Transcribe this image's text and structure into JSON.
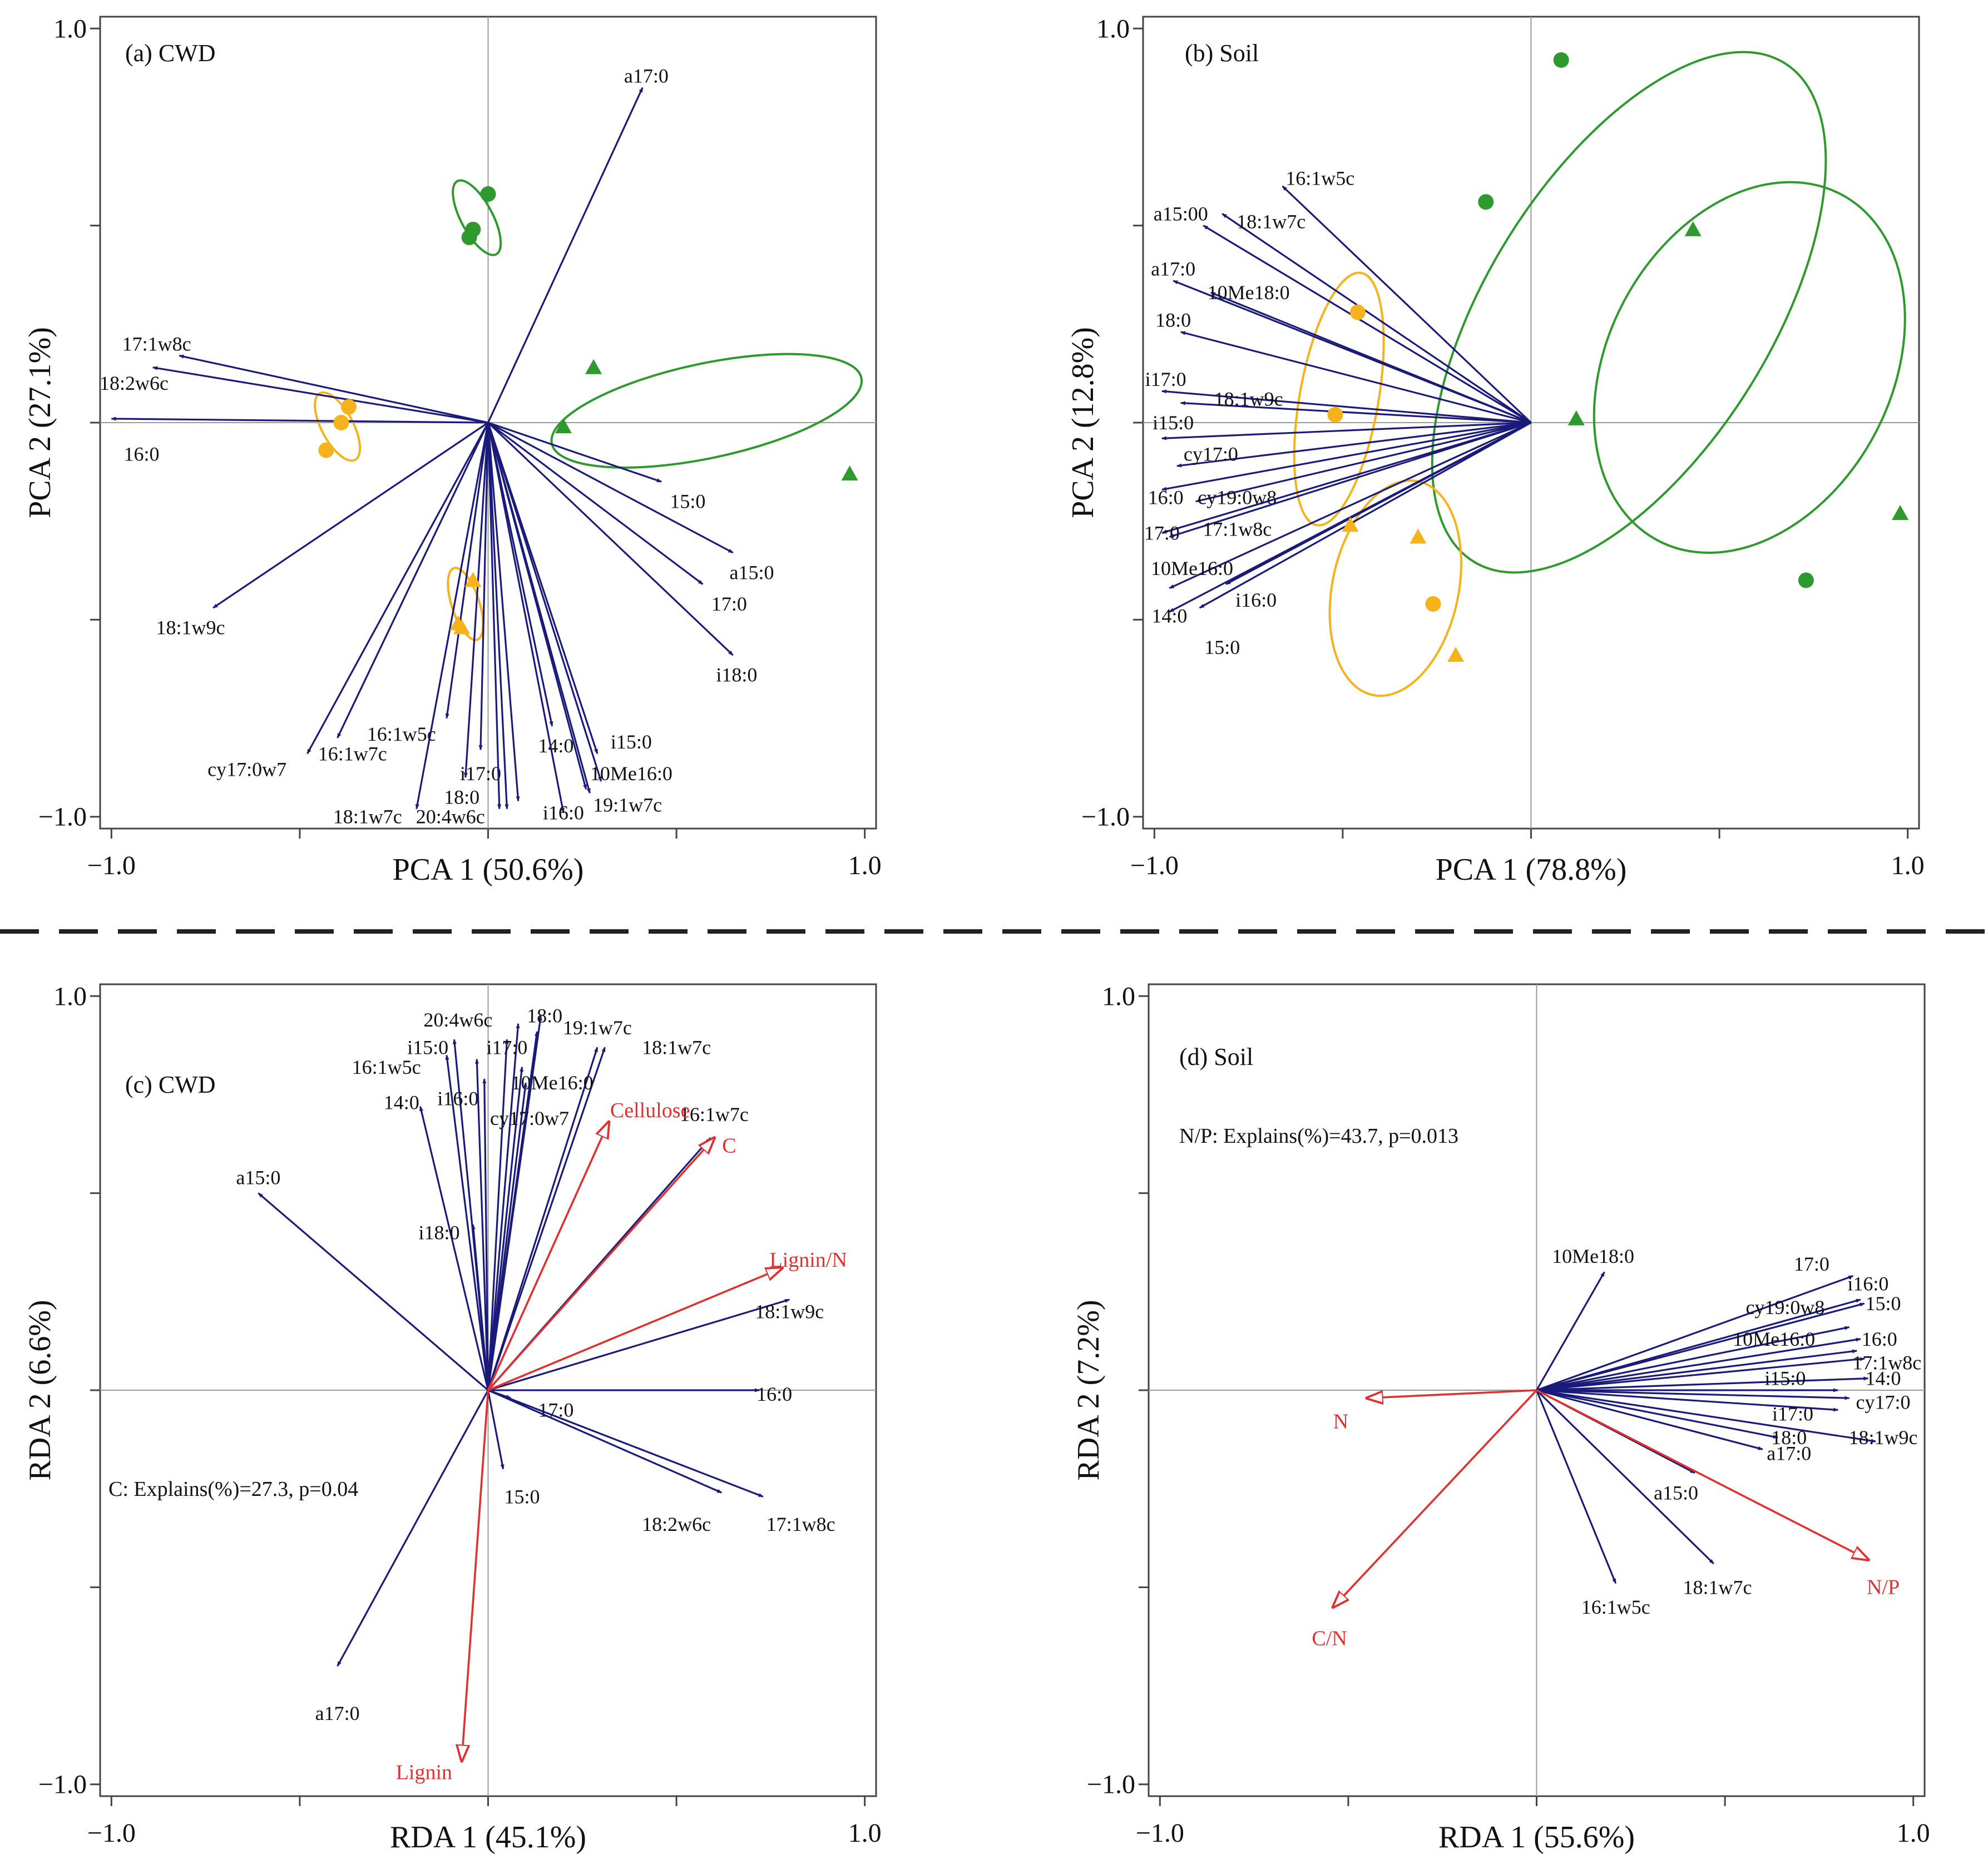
{
  "colors": {
    "species": "#1a1a7a",
    "env": "#e03030",
    "green": "#2e9a2e",
    "orange": "#f5b21a",
    "axes": "#444444",
    "crosshair": "#9a9a9a",
    "text": "#111111"
  },
  "chart_data": [
    {
      "id": "a",
      "type": "scatter",
      "subtype": "pca-biplot",
      "panel_label": "(a) CWD",
      "xlabel": "PCA 1 (50.6%)",
      "ylabel": "PCA 2 (27.1%)",
      "xlim": [
        -1.03,
        1.03
      ],
      "ylim": [
        -1.03,
        1.03
      ],
      "x_ticks": [
        -1.0,
        1.0
      ],
      "x_tick_labels": [
        "−1.0",
        "1.0"
      ],
      "y_ticks": [
        -1.0,
        1.0
      ],
      "y_tick_labels": [
        "−1.0",
        "1.0"
      ],
      "species_vectors": [
        {
          "label": "a17:0",
          "x": 0.41,
          "y": 0.85,
          "lx": 0.42,
          "ly": 0.88
        },
        {
          "label": "17:1w8c",
          "x": -0.82,
          "y": 0.17,
          "lx": -0.88,
          "ly": 0.2
        },
        {
          "label": "18:2w6c",
          "x": -0.89,
          "y": 0.14,
          "lx": -0.94,
          "ly": 0.1
        },
        {
          "label": "16:0",
          "x": -1.0,
          "y": 0.01,
          "lx": -0.92,
          "ly": -0.08
        },
        {
          "label": "15:0",
          "x": 0.46,
          "y": -0.15,
          "lx": 0.53,
          "ly": -0.2
        },
        {
          "label": "a15:0",
          "x": 0.65,
          "y": -0.33,
          "lx": 0.7,
          "ly": -0.38
        },
        {
          "label": "17:0",
          "x": 0.57,
          "y": -0.41,
          "lx": 0.64,
          "ly": -0.46
        },
        {
          "label": "i18:0",
          "x": 0.65,
          "y": -0.59,
          "lx": 0.66,
          "ly": -0.64
        },
        {
          "label": "18:1w9c",
          "x": -0.73,
          "y": -0.47,
          "lx": -0.79,
          "ly": -0.52
        },
        {
          "label": "cy17:0w7",
          "x": -0.48,
          "y": -0.84,
          "lx": -0.64,
          "ly": -0.88
        },
        {
          "label": "16:1w7c",
          "x": -0.4,
          "y": -0.8,
          "lx": -0.36,
          "ly": -0.84
        },
        {
          "label": "16:1w5c",
          "x": -0.11,
          "y": -0.75,
          "lx": -0.23,
          "ly": -0.79
        },
        {
          "label": "i17:0",
          "x": -0.02,
          "y": -0.83,
          "lx": -0.02,
          "ly": -0.89
        },
        {
          "label": "14:0",
          "x": 0.17,
          "y": -0.77,
          "lx": 0.18,
          "ly": -0.82
        },
        {
          "label": "i15:0",
          "x": 0.29,
          "y": -0.84,
          "lx": 0.38,
          "ly": -0.81
        },
        {
          "label": "10Me16:0",
          "x": 0.3,
          "y": -0.91,
          "lx": 0.38,
          "ly": -0.89
        },
        {
          "label": "19:1w7c",
          "x": 0.27,
          "y": -0.94,
          "lx": 0.37,
          "ly": -0.97
        },
        {
          "label": "i16:0",
          "x": 0.2,
          "y": -0.99,
          "lx": 0.2,
          "ly": -0.99
        },
        {
          "label": "18:0",
          "x": -0.06,
          "y": -0.9,
          "lx": -0.07,
          "ly": -0.95
        },
        {
          "label": "20:4w6c",
          "x": 0.05,
          "y": -0.98,
          "lx": -0.1,
          "ly": -1.0
        },
        {
          "label": "18:1w7c",
          "x": -0.19,
          "y": -0.98,
          "lx": -0.32,
          "ly": -1.0
        },
        {
          "label": "",
          "x": 0.03,
          "y": -0.98,
          "lx": 0,
          "ly": 0
        },
        {
          "label": "",
          "x": 0.08,
          "y": -0.96,
          "lx": 0,
          "ly": 0
        },
        {
          "label": "",
          "x": 0.26,
          "y": -0.93,
          "lx": 0,
          "ly": 0
        }
      ],
      "env_vectors": [],
      "points": [
        {
          "x": 0.0,
          "y": 0.58,
          "shape": "circle",
          "color": "green"
        },
        {
          "x": -0.04,
          "y": 0.49,
          "shape": "circle",
          "color": "green"
        },
        {
          "x": -0.05,
          "y": 0.47,
          "shape": "circle",
          "color": "green"
        },
        {
          "x": 0.28,
          "y": 0.14,
          "shape": "triangle",
          "color": "green"
        },
        {
          "x": 0.2,
          "y": -0.01,
          "shape": "triangle",
          "color": "green"
        },
        {
          "x": 0.96,
          "y": -0.13,
          "shape": "triangle",
          "color": "green"
        },
        {
          "x": -0.37,
          "y": 0.04,
          "shape": "circle",
          "color": "orange"
        },
        {
          "x": -0.39,
          "y": 0.0,
          "shape": "circle",
          "color": "orange"
        },
        {
          "x": -0.43,
          "y": -0.07,
          "shape": "circle",
          "color": "orange"
        },
        {
          "x": -0.04,
          "y": -0.4,
          "shape": "triangle",
          "color": "orange"
        },
        {
          "x": -0.08,
          "y": -0.51,
          "shape": "triangle",
          "color": "orange"
        },
        {
          "x": -0.07,
          "y": -0.52,
          "shape": "triangle",
          "color": "orange"
        }
      ],
      "ellipses": [
        {
          "cx": -0.03,
          "cy": 0.52,
          "rx": 0.11,
          "ry": 0.04,
          "angle": -62,
          "color": "green"
        },
        {
          "cx": 0.58,
          "cy": 0.03,
          "rx": 0.42,
          "ry": 0.12,
          "angle": 12,
          "color": "green"
        },
        {
          "cx": -0.4,
          "cy": -0.01,
          "rx": 0.1,
          "ry": 0.04,
          "angle": -62,
          "color": "orange"
        },
        {
          "cx": -0.06,
          "cy": -0.46,
          "rx": 0.1,
          "ry": 0.035,
          "angle": -72,
          "color": "orange"
        }
      ],
      "annotation": ""
    },
    {
      "id": "b",
      "type": "scatter",
      "subtype": "pca-biplot",
      "panel_label": "(b) Soil",
      "xlabel": "PCA 1 (78.8%)",
      "ylabel": "PCA 2 (12.8%)",
      "xlim": [
        -1.03,
        1.03
      ],
      "ylim": [
        -1.03,
        1.03
      ],
      "x_ticks": [
        -1.0,
        1.0
      ],
      "x_tick_labels": [
        "−1.0",
        "1.0"
      ],
      "y_ticks": [
        -1.0,
        1.0
      ],
      "y_tick_labels": [
        "−1.0",
        "1.0"
      ],
      "species_vectors": [
        {
          "label": "16:1w5c",
          "x": -0.66,
          "y": 0.6,
          "lx": -0.56,
          "ly": 0.62
        },
        {
          "label": "a15:00",
          "x": -0.87,
          "y": 0.5,
          "lx": -0.93,
          "ly": 0.53
        },
        {
          "label": "18:1w7c",
          "x": -0.82,
          "y": 0.53,
          "lx": -0.69,
          "ly": 0.51
        },
        {
          "label": "a17:0",
          "x": -0.95,
          "y": 0.36,
          "lx": -0.95,
          "ly": 0.39
        },
        {
          "label": "10Me18:0",
          "x": -0.85,
          "y": 0.33,
          "lx": -0.75,
          "ly": 0.33
        },
        {
          "label": "18:0",
          "x": -0.93,
          "y": 0.23,
          "lx": -0.95,
          "ly": 0.26
        },
        {
          "label": "i17:0",
          "x": -0.98,
          "y": 0.08,
          "lx": -0.97,
          "ly": 0.11
        },
        {
          "label": "18:1w9c",
          "x": -0.93,
          "y": 0.05,
          "lx": -0.75,
          "ly": 0.06
        },
        {
          "label": "i15:0",
          "x": -0.98,
          "y": -0.04,
          "lx": -0.95,
          "ly": 0.0
        },
        {
          "label": "cy17:0",
          "x": -0.94,
          "y": -0.11,
          "lx": -0.85,
          "ly": -0.08
        },
        {
          "label": "16:0",
          "x": -0.98,
          "y": -0.17,
          "lx": -0.97,
          "ly": -0.19
        },
        {
          "label": "cy19:0w8",
          "x": -0.89,
          "y": -0.2,
          "lx": -0.78,
          "ly": -0.19
        },
        {
          "label": "17:0",
          "x": -0.98,
          "y": -0.28,
          "lx": -0.98,
          "ly": -0.28
        },
        {
          "label": "17:1w8c",
          "x": -0.96,
          "y": -0.29,
          "lx": -0.78,
          "ly": -0.27
        },
        {
          "label": "10Me16:0",
          "x": -0.96,
          "y": -0.42,
          "lx": -0.9,
          "ly": -0.37
        },
        {
          "label": "i16:0",
          "x": -0.81,
          "y": -0.41,
          "lx": -0.73,
          "ly": -0.45
        },
        {
          "label": "14:0",
          "x": -0.96,
          "y": -0.48,
          "lx": -0.96,
          "ly": -0.49
        },
        {
          "label": "15:0",
          "x": -0.88,
          "y": -0.47,
          "lx": -0.82,
          "ly": -0.57
        }
      ],
      "env_vectors": [],
      "points": [
        {
          "x": 0.08,
          "y": 0.92,
          "shape": "circle",
          "color": "green"
        },
        {
          "x": -0.12,
          "y": 0.56,
          "shape": "circle",
          "color": "green"
        },
        {
          "x": 0.43,
          "y": 0.49,
          "shape": "triangle",
          "color": "green"
        },
        {
          "x": 0.12,
          "y": 0.01,
          "shape": "triangle",
          "color": "green"
        },
        {
          "x": 0.98,
          "y": -0.23,
          "shape": "triangle",
          "color": "green"
        },
        {
          "x": 0.73,
          "y": -0.4,
          "shape": "circle",
          "color": "green"
        },
        {
          "x": -0.46,
          "y": 0.28,
          "shape": "circle",
          "color": "orange"
        },
        {
          "x": -0.52,
          "y": 0.02,
          "shape": "circle",
          "color": "orange"
        },
        {
          "x": -0.48,
          "y": -0.26,
          "shape": "triangle",
          "color": "orange"
        },
        {
          "x": -0.3,
          "y": -0.29,
          "shape": "triangle",
          "color": "orange"
        },
        {
          "x": -0.26,
          "y": -0.46,
          "shape": "circle",
          "color": "orange"
        },
        {
          "x": -0.2,
          "y": -0.59,
          "shape": "triangle",
          "color": "orange"
        }
      ],
      "ellipses": [
        {
          "cx": 0.26,
          "cy": 0.28,
          "rx": 0.78,
          "ry": 0.36,
          "angle": 58,
          "color": "green"
        },
        {
          "cx": 0.58,
          "cy": 0.14,
          "rx": 0.52,
          "ry": 0.36,
          "angle": 62,
          "color": "green"
        },
        {
          "cx": -0.51,
          "cy": 0.06,
          "rx": 0.34,
          "ry": 0.1,
          "angle": 80,
          "color": "orange"
        },
        {
          "cx": -0.36,
          "cy": -0.42,
          "rx": 0.29,
          "ry": 0.16,
          "angle": 78,
          "color": "orange"
        }
      ],
      "annotation": ""
    },
    {
      "id": "c",
      "type": "scatter",
      "subtype": "rda-biplot",
      "panel_label": "(c) CWD",
      "xlabel": "RDA 1 (45.1%)",
      "ylabel": "RDA 2 (6.6%)",
      "xlim": [
        -1.03,
        1.03
      ],
      "ylim": [
        -1.03,
        1.03
      ],
      "x_ticks": [
        -1.0,
        1.0
      ],
      "x_tick_labels": [
        "−1.0",
        "1.0"
      ],
      "y_ticks": [
        -1.0,
        1.0
      ],
      "y_tick_labels": [
        "−1.0",
        "1.0"
      ],
      "species_vectors": [
        {
          "label": "20:4w6c",
          "x": 0.08,
          "y": 0.93,
          "lx": -0.08,
          "ly": 0.94
        },
        {
          "label": "18:0",
          "x": 0.14,
          "y": 0.95,
          "lx": 0.15,
          "ly": 0.95
        },
        {
          "label": "19:1w7c",
          "x": 0.29,
          "y": 0.87,
          "lx": 0.29,
          "ly": 0.92
        },
        {
          "label": "18:1w7c",
          "x": 0.31,
          "y": 0.87,
          "lx": 0.5,
          "ly": 0.87
        },
        {
          "label": "i15:0",
          "x": -0.09,
          "y": 0.89,
          "lx": -0.16,
          "ly": 0.87
        },
        {
          "label": "i17:0",
          "x": 0.05,
          "y": 0.89,
          "lx": 0.05,
          "ly": 0.87
        },
        {
          "label": "16:1w5c",
          "x": -0.11,
          "y": 0.85,
          "lx": -0.27,
          "ly": 0.82
        },
        {
          "label": "10Me16:0",
          "x": 0.09,
          "y": 0.82,
          "lx": 0.17,
          "ly": 0.78
        },
        {
          "label": "i16:0",
          "x": -0.01,
          "y": 0.79,
          "lx": -0.08,
          "ly": 0.74
        },
        {
          "label": "cy17:0w7",
          "x": 0.1,
          "y": 0.78,
          "lx": 0.11,
          "ly": 0.69
        },
        {
          "label": "14:0",
          "x": -0.18,
          "y": 0.72,
          "lx": -0.23,
          "ly": 0.73
        },
        {
          "label": "a15:0",
          "x": -0.61,
          "y": 0.5,
          "lx": -0.61,
          "ly": 0.54
        },
        {
          "label": "i18:0",
          "x": -0.04,
          "y": 0.42,
          "lx": -0.13,
          "ly": 0.4
        },
        {
          "label": "16:1w7c",
          "x": 0.59,
          "y": 0.64,
          "lx": 0.6,
          "ly": 0.7
        },
        {
          "label": "18:1w9c",
          "x": 0.8,
          "y": 0.23,
          "lx": 0.8,
          "ly": 0.2
        },
        {
          "label": "16:0",
          "x": 0.72,
          "y": 0.0,
          "lx": 0.76,
          "ly": -0.01
        },
        {
          "label": "17:0",
          "x": 0.06,
          "y": -0.02,
          "lx": 0.18,
          "ly": -0.05
        },
        {
          "label": "15:0",
          "x": 0.04,
          "y": -0.2,
          "lx": 0.09,
          "ly": -0.27
        },
        {
          "label": "18:2w6c",
          "x": 0.62,
          "y": -0.26,
          "lx": 0.5,
          "ly": -0.34
        },
        {
          "label": "17:1w8c",
          "x": 0.73,
          "y": -0.27,
          "lx": 0.83,
          "ly": -0.34
        },
        {
          "label": "a17:0",
          "x": -0.4,
          "y": -0.7,
          "lx": -0.4,
          "ly": -0.82
        },
        {
          "label": "",
          "x": 0.13,
          "y": 0.91,
          "lx": 0,
          "ly": 0
        },
        {
          "label": "",
          "x": -0.03,
          "y": 0.84,
          "lx": 0,
          "ly": 0
        }
      ],
      "env_vectors": [
        {
          "label": "Cellulose",
          "x": 0.32,
          "y": 0.68,
          "lx": 0.43,
          "ly": 0.71
        },
        {
          "label": "C",
          "x": 0.6,
          "y": 0.64,
          "lx": 0.64,
          "ly": 0.62
        },
        {
          "label": "Lignin/N",
          "x": 0.78,
          "y": 0.31,
          "lx": 0.85,
          "ly": 0.33
        },
        {
          "label": "Lignin",
          "x": -0.07,
          "y": -0.94,
          "lx": -0.17,
          "ly": -0.97
        }
      ],
      "points": [],
      "ellipses": [],
      "annotation": "C: Explains(%)=27.3, p=0.04"
    },
    {
      "id": "d",
      "type": "scatter",
      "subtype": "rda-biplot",
      "panel_label": "(d) Soil",
      "xlabel": "RDA 1 (55.6%)",
      "ylabel": "RDA 2 (7.2%)",
      "xlim": [
        -1.03,
        1.03
      ],
      "ylim": [
        -1.03,
        1.03
      ],
      "x_ticks": [
        -1.0,
        1.0
      ],
      "x_tick_labels": [
        "−1.0",
        "1.0"
      ],
      "y_ticks": [
        -1.0,
        1.0
      ],
      "y_tick_labels": [
        "−1.0",
        "1.0"
      ],
      "species_vectors": [
        {
          "label": "10Me18:0",
          "x": 0.18,
          "y": 0.3,
          "lx": 0.15,
          "ly": 0.34
        },
        {
          "label": "17:0",
          "x": 0.84,
          "y": 0.29,
          "lx": 0.73,
          "ly": 0.32
        },
        {
          "label": "i16:0",
          "x": 0.86,
          "y": 0.23,
          "lx": 0.88,
          "ly": 0.27
        },
        {
          "label": "15:0",
          "x": 0.87,
          "y": 0.22,
          "lx": 0.92,
          "ly": 0.22
        },
        {
          "label": "cy19:0w8",
          "x": 0.83,
          "y": 0.16,
          "lx": 0.66,
          "ly": 0.21
        },
        {
          "label": "16:0",
          "x": 0.86,
          "y": 0.13,
          "lx": 0.91,
          "ly": 0.13
        },
        {
          "label": "10Me16:0",
          "x": 0.85,
          "y": 0.1,
          "lx": 0.63,
          "ly": 0.13
        },
        {
          "label": "17:1w8c",
          "x": 0.87,
          "y": 0.08,
          "lx": 0.93,
          "ly": 0.07
        },
        {
          "label": "14:0",
          "x": 0.88,
          "y": 0.03,
          "lx": 0.92,
          "ly": 0.03
        },
        {
          "label": "i15:0",
          "x": 0.8,
          "y": 0.0,
          "lx": 0.66,
          "ly": 0.03
        },
        {
          "label": "cy17:0",
          "x": 0.83,
          "y": -0.02,
          "lx": 0.92,
          "ly": -0.03
        },
        {
          "label": "i17:0",
          "x": 0.8,
          "y": -0.05,
          "lx": 0.68,
          "ly": -0.06
        },
        {
          "label": "18:1w9c",
          "x": 0.9,
          "y": -0.13,
          "lx": 0.92,
          "ly": -0.12
        },
        {
          "label": "18:0",
          "x": 0.64,
          "y": -0.12,
          "lx": 0.67,
          "ly": -0.12
        },
        {
          "label": "a17:0",
          "x": 0.6,
          "y": -0.15,
          "lx": 0.67,
          "ly": -0.16
        },
        {
          "label": "a15:0",
          "x": 0.42,
          "y": -0.21,
          "lx": 0.37,
          "ly": -0.26
        },
        {
          "label": "16:1w5c",
          "x": 0.21,
          "y": -0.49,
          "lx": 0.21,
          "ly": -0.55
        },
        {
          "label": "18:1w7c",
          "x": 0.47,
          "y": -0.44,
          "lx": 0.48,
          "ly": -0.5
        }
      ],
      "env_vectors": [
        {
          "label": "N",
          "x": -0.45,
          "y": -0.02,
          "lx": -0.52,
          "ly": -0.08
        },
        {
          "label": "N/P",
          "x": 0.88,
          "y": -0.43,
          "lx": 0.92,
          "ly": -0.5
        },
        {
          "label": "C/N",
          "x": -0.54,
          "y": -0.55,
          "lx": -0.55,
          "ly": -0.63
        }
      ],
      "points": [],
      "ellipses": [],
      "annotation": "N/P: Explains(%)=43.7, p=0.013"
    }
  ]
}
